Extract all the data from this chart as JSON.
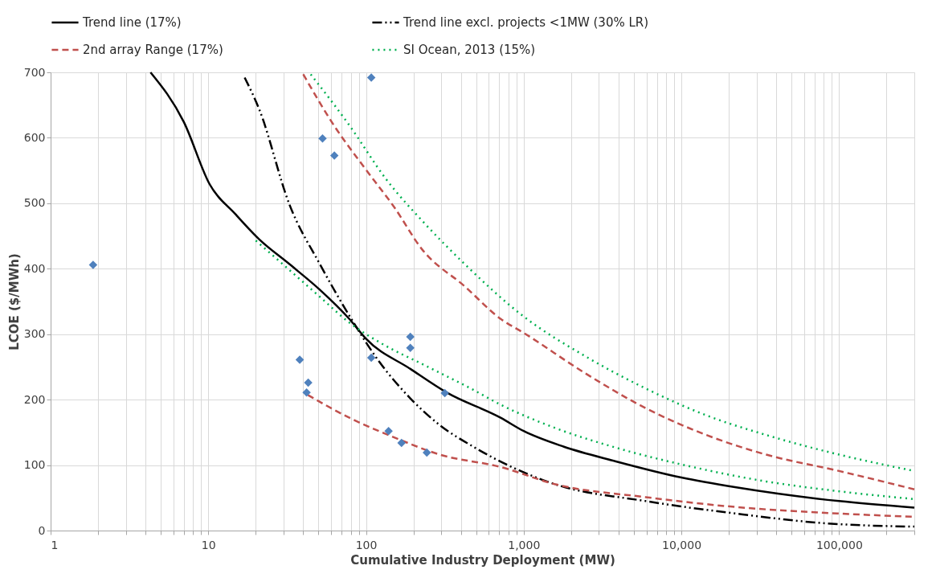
{
  "chart_data": {
    "type": "line",
    "xlabel": "Cumulative Industry Deployment (MW)",
    "ylabel": "LCOE ($/MWh)",
    "log": "x",
    "grid": true,
    "legend": "top",
    "xlim": [
      1,
      300000
    ],
    "ylim": [
      0,
      700
    ],
    "xticks": [
      1,
      {
        "value": 2,
        "label": null
      },
      {
        "value": 3,
        "label": null
      },
      {
        "value": 4,
        "label": null
      },
      {
        "value": 5,
        "label": null
      },
      {
        "value": 6,
        "label": null
      },
      {
        "value": 7,
        "label": null
      },
      {
        "value": 8,
        "label": null
      },
      {
        "value": 9,
        "label": null
      },
      10,
      {
        "value": 20,
        "label": null
      },
      {
        "value": 30,
        "label": null
      },
      {
        "value": 40,
        "label": null
      },
      {
        "value": 50,
        "label": null
      },
      {
        "value": 60,
        "label": null
      },
      {
        "value": 70,
        "label": null
      },
      {
        "value": 80,
        "label": null
      },
      {
        "value": 90,
        "label": null
      },
      100,
      {
        "value": 200,
        "label": null
      },
      {
        "value": 300,
        "label": null
      },
      {
        "value": 400,
        "label": null
      },
      {
        "value": 500,
        "label": null
      },
      {
        "value": 600,
        "label": null
      },
      {
        "value": 700,
        "label": null
      },
      {
        "value": 800,
        "label": null
      },
      {
        "value": 900,
        "label": null
      },
      {
        "value": 1000,
        "label": "1,000"
      },
      {
        "value": 2000,
        "label": null
      },
      {
        "value": 3000,
        "label": null
      },
      {
        "value": 4000,
        "label": null
      },
      {
        "value": 5000,
        "label": null
      },
      {
        "value": 6000,
        "label": null
      },
      {
        "value": 7000,
        "label": null
      },
      {
        "value": 8000,
        "label": null
      },
      {
        "value": 9000,
        "label": null
      },
      {
        "value": 10000,
        "label": "10,000"
      },
      {
        "value": 20000,
        "label": null
      },
      {
        "value": 30000,
        "label": null
      },
      {
        "value": 40000,
        "label": null
      },
      {
        "value": 50000,
        "label": null
      },
      {
        "value": 60000,
        "label": null
      },
      {
        "value": 70000,
        "label": null
      },
      {
        "value": 80000,
        "label": null
      },
      {
        "value": 90000,
        "label": null
      },
      {
        "value": 100000,
        "label": "100,000"
      },
      {
        "value": 200000,
        "label": null
      },
      {
        "value": 300000,
        "label": null
      }
    ],
    "yticks": [
      0,
      100,
      200,
      300,
      400,
      500,
      600,
      700
    ],
    "series": [
      {
        "name": "Trend line (17%)",
        "color": "#000000",
        "line_style": "solid",
        "x": [
          4.3,
          7.0,
          10.2,
          14.9,
          21,
          32.7,
          50.9,
          78.6,
          100,
          191,
          324,
          718,
          1000,
          1800,
          3800,
          10000,
          22300,
          100000,
          300000
        ],
        "values": [
          700,
          624,
          529,
          483,
          445,
          407,
          368,
          323,
          293,
          247,
          211,
          172,
          152,
          128,
          106,
          81,
          66,
          45,
          35
        ]
      },
      {
        "name": "Trend line excl. projects <1MW (30% LR)",
        "color": "#000000",
        "line_style": "dashdot",
        "x": [
          17,
          21,
          32.7,
          51,
          79,
          123,
          191,
          294,
          480,
          1570,
          5940,
          22000,
          83000,
          300000
        ],
        "values": [
          692,
          644,
          498,
          407,
          327,
          256,
          202,
          161,
          128,
          71,
          45,
          26,
          11,
          6
        ]
      },
      {
        "name": "2nd array Range (17%)",
        "color": "#c0504d",
        "line_style": "dashed",
        "x": [
          40,
          63,
          98,
          152,
          226,
          423,
          718,
          1000,
          2430,
          5940,
          14400,
          34500,
          100000,
          300000
        ],
        "values": [
          697,
          618,
          554,
          493,
          430,
          373,
          323,
          302,
          241,
          187,
          146,
          116,
          91,
          63
        ]
      },
      {
        "color": "#c0504d",
        "line_style": "dashed",
        "x": [
          42.8,
          79,
          152,
          294,
          718,
          1570,
          5940,
          22000,
          100000,
          300000
        ],
        "values": [
          207,
          172,
          142,
          116,
          97,
          71,
          51,
          36,
          26,
          21
        ]
      },
      {
        "name": "SI Ocean, 2013 (15%)",
        "color": "#00b050",
        "line_style": "dotted",
        "x": [
          44.6,
          79,
          133,
          238,
          423,
          1000,
          2430,
          5940,
          14400,
          34500,
          100000,
          300000
        ],
        "values": [
          697,
          618,
          538,
          468,
          407,
          327,
          267,
          217,
          176,
          146,
          116,
          91
        ]
      },
      {
        "color": "#00b050",
        "line_style": "dotted",
        "x": [
          20,
          32.7,
          51,
          79,
          123,
          238,
          462,
          718,
          1570,
          3800,
          10000,
          34500,
          100000,
          300000
        ],
        "values": [
          443,
          398,
          357,
          317,
          287,
          252,
          217,
          192,
          157,
          127,
          101,
          75,
          60,
          48
        ]
      },
      {
        "type": "scatter",
        "marker": "diamond",
        "color": "#4f81bd",
        "x": [
          1.86,
          108,
          53,
          63,
          38,
          43,
          42,
          108,
          191,
          191,
          316,
          139,
          168,
          243
        ],
        "values": [
          406,
          692,
          599,
          573,
          261,
          226,
          211,
          264,
          296,
          279,
          210,
          152,
          134,
          119
        ]
      }
    ]
  }
}
